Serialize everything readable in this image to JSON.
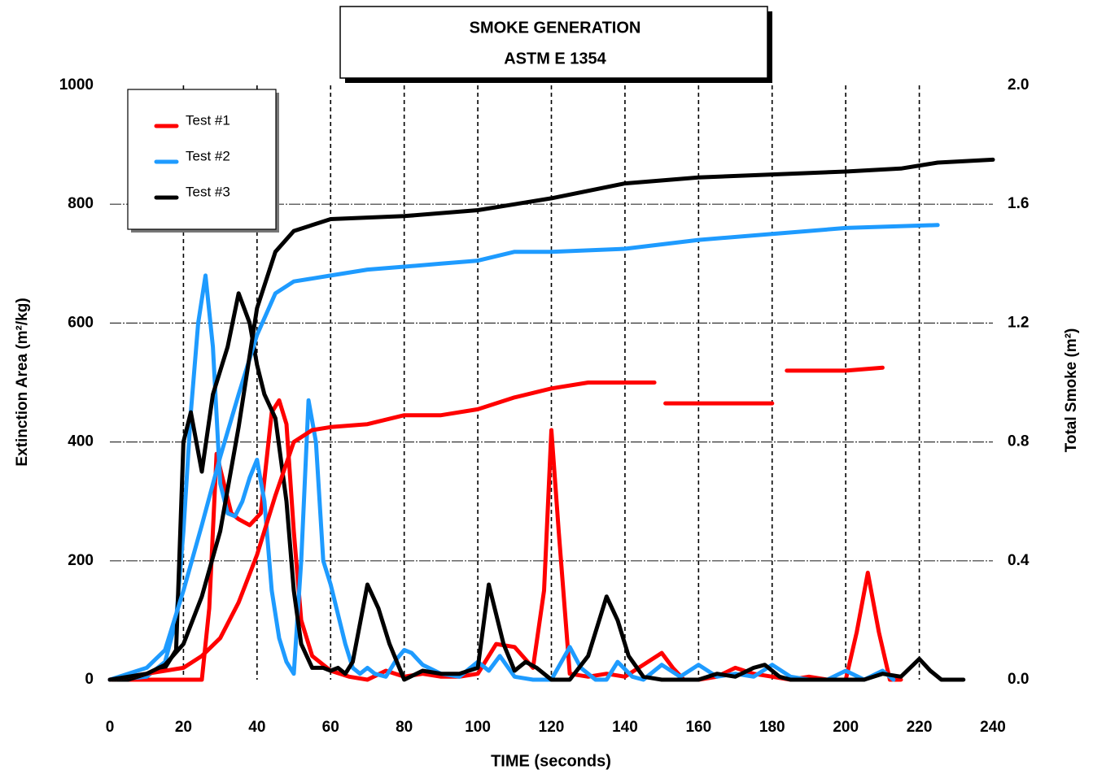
{
  "chart_data": {
    "type": "line",
    "title": "SMOKE GENERATION",
    "subtitle": "ASTM E 1354",
    "x_label": "TIME (seconds)",
    "y_label": "Extinction Area (m²/kg)",
    "y2_label": "Total Smoke (m²)",
    "xlim": [
      0,
      240
    ],
    "xticks": [
      0,
      20,
      40,
      60,
      80,
      100,
      120,
      140,
      160,
      180,
      200,
      220,
      240
    ],
    "ylim": [
      0,
      1000
    ],
    "yticks": [
      0,
      200,
      400,
      600,
      800,
      1000
    ],
    "y2lim": [
      0,
      2
    ],
    "y2ticks": [
      {
        "value": 0,
        "label": "0.0"
      },
      0.4,
      0.8,
      1.2,
      1.6,
      {
        "value": 2,
        "label": "2.0"
      }
    ],
    "grid": true,
    "legend": "upper left",
    "series": [
      {
        "name": "Test #1",
        "color": "#ff0000",
        "x": [
          0,
          10,
          20,
          25,
          27,
          29,
          31,
          33,
          35,
          38,
          41,
          44,
          46,
          48,
          50,
          52,
          55,
          60,
          65,
          70,
          75,
          80,
          85,
          90,
          95,
          100,
          105,
          110,
          115,
          118,
          120,
          122,
          125,
          130,
          135,
          140,
          145,
          150,
          153,
          156,
          160,
          165,
          170,
          175,
          180,
          185,
          190,
          195,
          200,
          203,
          206,
          209,
          212,
          215
        ],
        "values": [
          0,
          0,
          0,
          0,
          120,
          380,
          330,
          280,
          270,
          260,
          280,
          450,
          470,
          430,
          250,
          100,
          40,
          15,
          5,
          0,
          15,
          5,
          10,
          5,
          5,
          10,
          60,
          55,
          20,
          150,
          420,
          250,
          10,
          5,
          10,
          5,
          25,
          45,
          20,
          0,
          0,
          5,
          20,
          10,
          5,
          0,
          5,
          0,
          0,
          80,
          180,
          80,
          0,
          0
        ]
      },
      {
        "name": "Test #2",
        "color": "#1e9bff",
        "x": [
          0,
          5,
          10,
          15,
          18,
          20,
          22,
          24,
          26,
          28,
          30,
          32,
          34,
          36,
          38,
          40,
          42,
          44,
          46,
          48,
          50,
          52,
          54,
          56,
          58,
          60,
          62,
          64,
          66,
          68,
          70,
          72,
          75,
          78,
          80,
          82,
          85,
          90,
          95,
          100,
          103,
          106,
          110,
          115,
          120,
          125,
          128,
          132,
          135,
          138,
          142,
          145,
          150,
          155,
          160,
          165,
          170,
          175,
          180,
          185,
          190,
          195,
          200,
          205,
          210,
          213
        ],
        "values": [
          0,
          2,
          5,
          30,
          100,
          250,
          450,
          600,
          680,
          560,
          330,
          280,
          275,
          300,
          340,
          370,
          300,
          150,
          70,
          30,
          10,
          200,
          470,
          400,
          200,
          160,
          110,
          60,
          20,
          10,
          20,
          10,
          5,
          35,
          50,
          45,
          25,
          10,
          5,
          30,
          15,
          40,
          5,
          0,
          0,
          55,
          20,
          0,
          0,
          30,
          5,
          0,
          25,
          5,
          25,
          5,
          10,
          5,
          25,
          5,
          0,
          0,
          15,
          0,
          15,
          0
        ]
      },
      {
        "name": "Test #3",
        "color": "#000000",
        "x": [
          0,
          5,
          10,
          15,
          18,
          20,
          22,
          25,
          28,
          32,
          35,
          38,
          40,
          42,
          45,
          48,
          50,
          52,
          55,
          58,
          60,
          62,
          64,
          66,
          70,
          73,
          76,
          80,
          85,
          90,
          95,
          100,
          103,
          107,
          110,
          113,
          116,
          120,
          125,
          130,
          135,
          138,
          141,
          145,
          150,
          155,
          160,
          165,
          170,
          175,
          178,
          182,
          185,
          195,
          200,
          205,
          210,
          215,
          220,
          223,
          226,
          232
        ],
        "values": [
          0,
          0,
          10,
          20,
          50,
          400,
          450,
          350,
          480,
          560,
          650,
          600,
          530,
          480,
          440,
          300,
          150,
          60,
          20,
          20,
          15,
          20,
          10,
          30,
          160,
          120,
          60,
          0,
          15,
          10,
          10,
          20,
          160,
          60,
          15,
          30,
          20,
          0,
          0,
          40,
          140,
          100,
          40,
          5,
          0,
          0,
          0,
          10,
          5,
          20,
          25,
          5,
          0,
          0,
          0,
          0,
          10,
          5,
          35,
          15,
          0,
          0
        ]
      },
      {
        "color": "#ff0000",
        "axis": "y2",
        "x": [
          0,
          10,
          20,
          25,
          30,
          35,
          40,
          45,
          50,
          55,
          60,
          70,
          80,
          90,
          100,
          110,
          120,
          130,
          140,
          148,
          149,
          151,
          180,
          182,
          184,
          200,
          210
        ],
        "values": [
          0,
          0.02,
          0.04,
          0.08,
          0.14,
          0.26,
          0.42,
          0.62,
          0.8,
          0.84,
          0.85,
          0.86,
          0.89,
          0.89,
          0.91,
          0.95,
          0.98,
          1.0,
          1.0,
          1.0,
          null,
          0.93,
          0.93,
          null,
          1.04,
          1.04,
          1.05
        ]
      },
      {
        "color": "#1e9bff",
        "axis": "y2",
        "x": [
          0,
          10,
          15,
          20,
          25,
          30,
          35,
          40,
          45,
          50,
          60,
          70,
          80,
          90,
          100,
          110,
          120,
          140,
          160,
          180,
          200,
          225
        ],
        "values": [
          0,
          0.04,
          0.1,
          0.3,
          0.52,
          0.75,
          0.96,
          1.16,
          1.3,
          1.34,
          1.36,
          1.38,
          1.39,
          1.4,
          1.41,
          1.44,
          1.44,
          1.45,
          1.48,
          1.5,
          1.52,
          1.53
        ]
      },
      {
        "color": "#000000",
        "axis": "y2",
        "x": [
          0,
          10,
          15,
          20,
          25,
          30,
          35,
          40,
          45,
          50,
          60,
          80,
          100,
          120,
          140,
          160,
          180,
          200,
          215,
          225,
          240
        ],
        "values": [
          0,
          0.02,
          0.05,
          0.12,
          0.28,
          0.5,
          0.85,
          1.25,
          1.44,
          1.51,
          1.55,
          1.56,
          1.58,
          1.62,
          1.67,
          1.69,
          1.7,
          1.71,
          1.72,
          1.74,
          1.75
        ]
      }
    ]
  }
}
